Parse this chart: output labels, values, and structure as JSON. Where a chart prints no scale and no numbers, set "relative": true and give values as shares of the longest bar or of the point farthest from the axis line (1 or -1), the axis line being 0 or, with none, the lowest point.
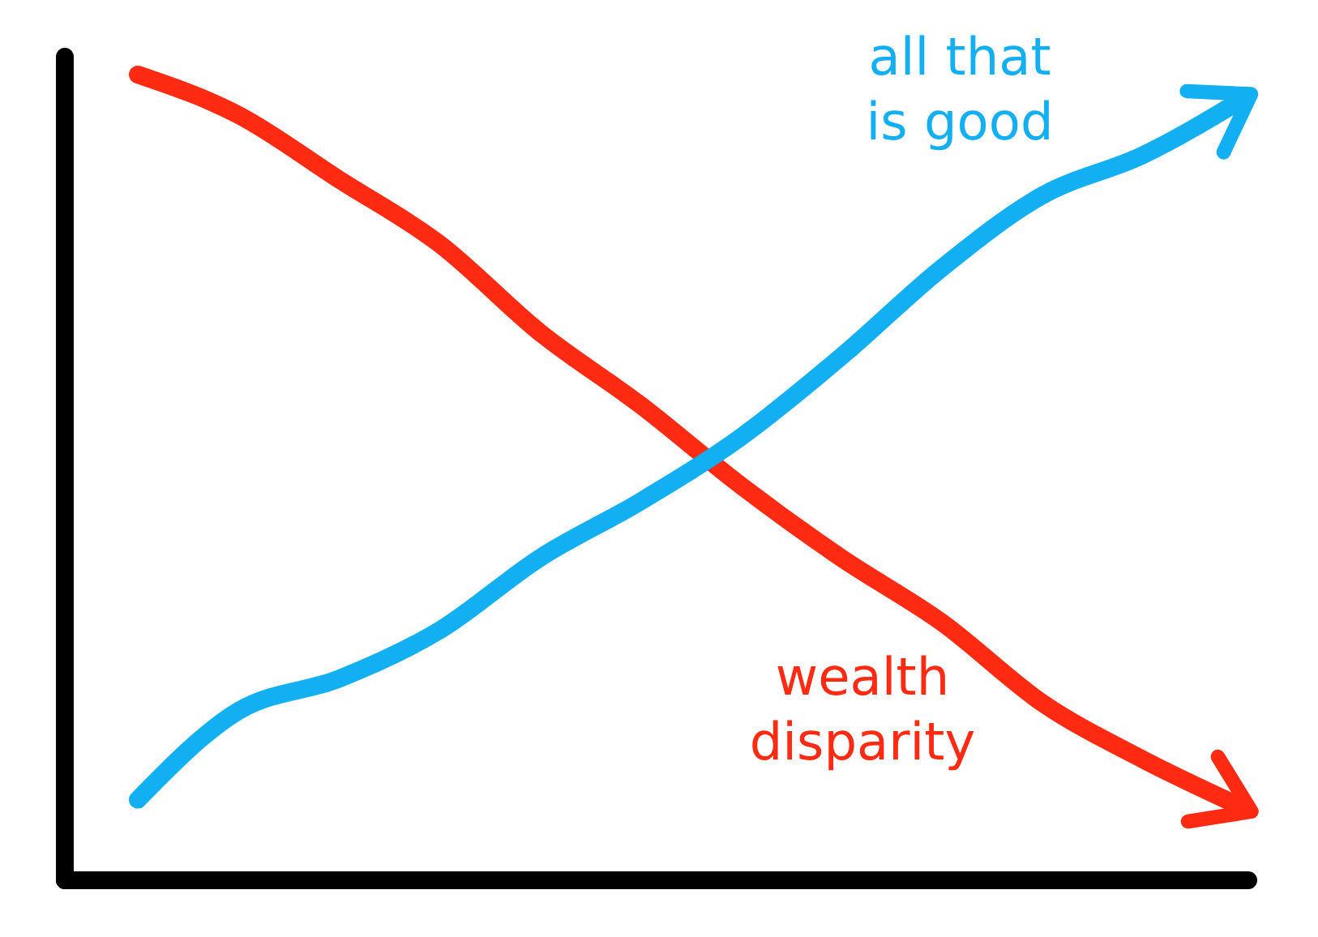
{
  "chart_data": {
    "type": "line",
    "relative": true,
    "legend": false,
    "marker": "none",
    "line_style": "solid",
    "categories": [
      null,
      null,
      null,
      null,
      null,
      null,
      null,
      null,
      null,
      null,
      null,
      null
    ],
    "series": [
      {
        "name": "wealth disparity",
        "color": "#ff2a12",
        "values": [
          1,
          0.95,
          0.87,
          0.79,
          0.68,
          0.59,
          0.49,
          0.4,
          0.32,
          0.22,
          0.15,
          0.09
        ]
      },
      {
        "name": "all that is good",
        "color": "#12b0f2",
        "values": [
          0.1,
          0.21,
          0.25,
          0.31,
          0.4,
          0.47,
          0.55,
          0.65,
          0.76,
          0.85,
          0.9,
          0.97
        ]
      }
    ]
  }
}
